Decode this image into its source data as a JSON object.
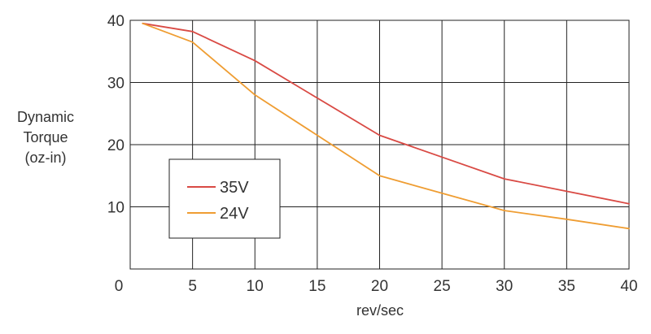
{
  "chart_data": {
    "type": "line",
    "title": "",
    "xlabel": "rev/sec",
    "ylabel": [
      "Dynamic",
      "Torque",
      "(oz-in)"
    ],
    "xlim": [
      0,
      40
    ],
    "ylim": [
      0,
      40
    ],
    "x_ticks": [
      "5",
      "10",
      "15",
      "20",
      "25",
      "30",
      "35",
      "40"
    ],
    "x_tick_values": [
      5,
      10,
      15,
      20,
      25,
      30,
      35,
      40
    ],
    "y_ticks": [
      "10",
      "20",
      "30",
      "40"
    ],
    "y_tick_values": [
      10,
      20,
      30,
      40
    ],
    "origin_label": "0",
    "grid": true,
    "legend_position": "left-center",
    "series": [
      {
        "name": "35V",
        "color": "#d94a44",
        "points": [
          [
            1,
            39.5
          ],
          [
            5,
            38.2
          ],
          [
            10,
            33.5
          ],
          [
            15,
            27.5
          ],
          [
            20,
            21.5
          ],
          [
            25,
            18
          ],
          [
            30,
            14.5
          ],
          [
            35,
            12.5
          ],
          [
            40,
            10.5
          ]
        ]
      },
      {
        "name": "24V",
        "color": "#ef9d32",
        "points": [
          [
            1,
            39.5
          ],
          [
            5,
            36.5
          ],
          [
            10,
            28
          ],
          [
            15,
            21.5
          ],
          [
            20,
            15
          ],
          [
            25,
            12.2
          ],
          [
            30,
            9.4
          ],
          [
            35,
            8
          ],
          [
            40,
            6.5
          ]
        ]
      }
    ]
  }
}
